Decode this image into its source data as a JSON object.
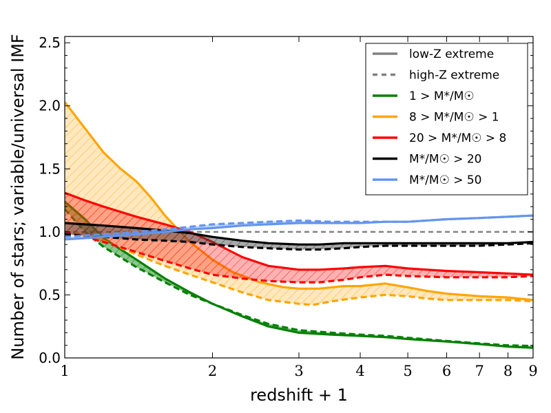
{
  "chart_data": {
    "type": "line",
    "title": "",
    "xlabel": "redshift + 1",
    "ylabel": "Number of stars; variable/universal IMF",
    "xscale": "log",
    "xlim": [
      1,
      9
    ],
    "ylim": [
      0,
      2.55
    ],
    "x_ticks": [
      1,
      2,
      3,
      4,
      5,
      6,
      7,
      8,
      9
    ],
    "x_tick_labels": [
      "1",
      "2",
      "3",
      "4",
      "5",
      "6",
      "7",
      "8",
      "9"
    ],
    "y_ticks": [
      0,
      0.5,
      1,
      1.5,
      2,
      2.5
    ],
    "y_tick_labels": [
      "0.0",
      "0.5",
      "1.0",
      "1.5",
      "2.0",
      "2.5"
    ],
    "reference_line": {
      "y": 1.0,
      "color": "#808080",
      "style": "dashed"
    },
    "legend": {
      "placement": "top-right",
      "entries": [
        {
          "label": "low-Z extreme",
          "color": "#808080",
          "style": "solid"
        },
        {
          "label": "high-Z extreme",
          "color": "#808080",
          "style": "dashed"
        },
        {
          "label": "1 > M*/M☉",
          "color": "#008000",
          "style": "solid"
        },
        {
          "label": "8 > M*/M☉ > 1",
          "color": "#FFA500",
          "style": "solid"
        },
        {
          "label": "20 > M*/M☉ > 8",
          "color": "#FF0000",
          "style": "solid"
        },
        {
          "label": "M*/M☉ > 20",
          "color": "#000000",
          "style": "solid"
        },
        {
          "label": "M*/M☉ > 50",
          "color": "#6495ED",
          "style": "solid"
        }
      ]
    },
    "series": [
      {
        "name": "1 > M*/M☉",
        "color": "#008000",
        "fill": "#008000",
        "low_Z": {
          "x": [
            1,
            1.1,
            1.2,
            1.4,
            1.6,
            1.8,
            2,
            2.3,
            2.6,
            3,
            3.5,
            4,
            4.5,
            5,
            6,
            7,
            8,
            9
          ],
          "y": [
            1.24,
            1.1,
            0.95,
            0.78,
            0.63,
            0.52,
            0.43,
            0.33,
            0.25,
            0.2,
            0.185,
            0.175,
            0.165,
            0.15,
            0.13,
            0.11,
            0.09,
            0.08
          ]
        },
        "high_Z": {
          "x": [
            1,
            1.1,
            1.2,
            1.4,
            1.6,
            1.8,
            2,
            2.3,
            2.6,
            3,
            3.5,
            4,
            4.5,
            5,
            6,
            7,
            8,
            9
          ],
          "y": [
            1.18,
            1.0,
            0.88,
            0.72,
            0.6,
            0.5,
            0.43,
            0.34,
            0.27,
            0.22,
            0.2,
            0.185,
            0.175,
            0.16,
            0.135,
            0.115,
            0.1,
            0.095
          ]
        }
      },
      {
        "name": "8 > M*/M☉ > 1",
        "color": "#FFA500",
        "fill": "#FFA500",
        "low_Z": {
          "x": [
            1,
            1.1,
            1.2,
            1.3,
            1.4,
            1.5,
            1.6,
            1.7,
            1.8,
            2,
            2.2,
            2.5,
            2.8,
            3,
            3.3,
            3.7,
            4,
            4.5,
            5,
            5.5,
            6,
            7,
            8,
            9
          ],
          "y": [
            2.03,
            1.82,
            1.63,
            1.5,
            1.4,
            1.27,
            1.13,
            1.02,
            0.92,
            0.78,
            0.68,
            0.6,
            0.56,
            0.55,
            0.55,
            0.57,
            0.57,
            0.59,
            0.56,
            0.53,
            0.51,
            0.49,
            0.48,
            0.46
          ]
        },
        "high_Z": {
          "x": [
            1,
            1.1,
            1.2,
            1.4,
            1.6,
            1.8,
            2,
            2.3,
            2.6,
            3,
            3.2,
            3.5,
            4,
            4.5,
            5,
            5.5,
            6,
            7,
            8,
            9
          ],
          "y": [
            1.0,
            0.98,
            0.93,
            0.82,
            0.73,
            0.66,
            0.6,
            0.52,
            0.46,
            0.43,
            0.42,
            0.45,
            0.48,
            0.5,
            0.49,
            0.47,
            0.46,
            0.46,
            0.46,
            0.45
          ]
        }
      },
      {
        "name": "20 > M*/M☉ > 8",
        "color": "#FF0000",
        "fill": "#FF0000",
        "low_Z": {
          "x": [
            1,
            1.1,
            1.2,
            1.4,
            1.6,
            1.8,
            2,
            2.3,
            2.6,
            3,
            3.3,
            3.7,
            4,
            4.5,
            5,
            6,
            7,
            8,
            9
          ],
          "y": [
            1.31,
            1.25,
            1.2,
            1.12,
            1.06,
            1.0,
            0.92,
            0.8,
            0.73,
            0.7,
            0.7,
            0.71,
            0.72,
            0.73,
            0.71,
            0.69,
            0.68,
            0.67,
            0.66
          ]
        },
        "high_Z": {
          "x": [
            1,
            1.1,
            1.2,
            1.4,
            1.6,
            1.8,
            2,
            2.3,
            2.6,
            3,
            3.3,
            3.7,
            4,
            4.5,
            5,
            6,
            7,
            8,
            9
          ],
          "y": [
            1.0,
            0.96,
            0.92,
            0.84,
            0.77,
            0.71,
            0.66,
            0.63,
            0.61,
            0.6,
            0.6,
            0.62,
            0.64,
            0.66,
            0.65,
            0.64,
            0.64,
            0.64,
            0.65
          ]
        }
      },
      {
        "name": "M*/M☉ > 20",
        "color": "#000000",
        "fill": "#404040",
        "low_Z": {
          "x": [
            1,
            1.2,
            1.4,
            1.6,
            1.8,
            2,
            2.3,
            2.6,
            3,
            3.3,
            3.7,
            4,
            4.5,
            5,
            6,
            7,
            8,
            9
          ],
          "y": [
            1.07,
            1.05,
            1.03,
            1.01,
            0.99,
            0.96,
            0.93,
            0.91,
            0.9,
            0.9,
            0.91,
            0.91,
            0.91,
            0.91,
            0.91,
            0.91,
            0.91,
            0.92
          ]
        },
        "high_Z": {
          "x": [
            1,
            1.2,
            1.4,
            1.6,
            1.8,
            2,
            2.3,
            2.6,
            3,
            3.3,
            3.7,
            4,
            4.5,
            5,
            6,
            7,
            8,
            9
          ],
          "y": [
            0.98,
            0.96,
            0.94,
            0.93,
            0.92,
            0.9,
            0.88,
            0.87,
            0.86,
            0.86,
            0.87,
            0.88,
            0.89,
            0.89,
            0.89,
            0.89,
            0.9,
            0.91
          ]
        }
      },
      {
        "name": "M*/M☉ > 50",
        "color": "#6495ED",
        "fill": "#6495ED",
        "low_Z": {
          "x": [
            1,
            1.2,
            1.4,
            1.6,
            1.8,
            2,
            2.3,
            2.6,
            3,
            3.5,
            4,
            4.5,
            5,
            6,
            7,
            8,
            9
          ],
          "y": [
            0.94,
            0.96,
            0.98,
            1.0,
            1.02,
            1.03,
            1.05,
            1.06,
            1.07,
            1.07,
            1.07,
            1.08,
            1.08,
            1.1,
            1.11,
            1.12,
            1.13
          ]
        },
        "high_Z": {
          "x": [
            1,
            1.2,
            1.4,
            1.6,
            1.8,
            2,
            2.3,
            2.6,
            3,
            3.5,
            4,
            4.5,
            5,
            6,
            7,
            8,
            9
          ],
          "y": [
            0.96,
            0.98,
            1.0,
            1.02,
            1.04,
            1.06,
            1.07,
            1.08,
            1.09,
            1.08,
            1.08,
            1.08,
            1.08,
            1.1,
            1.11,
            1.12,
            1.13
          ]
        }
      }
    ]
  }
}
